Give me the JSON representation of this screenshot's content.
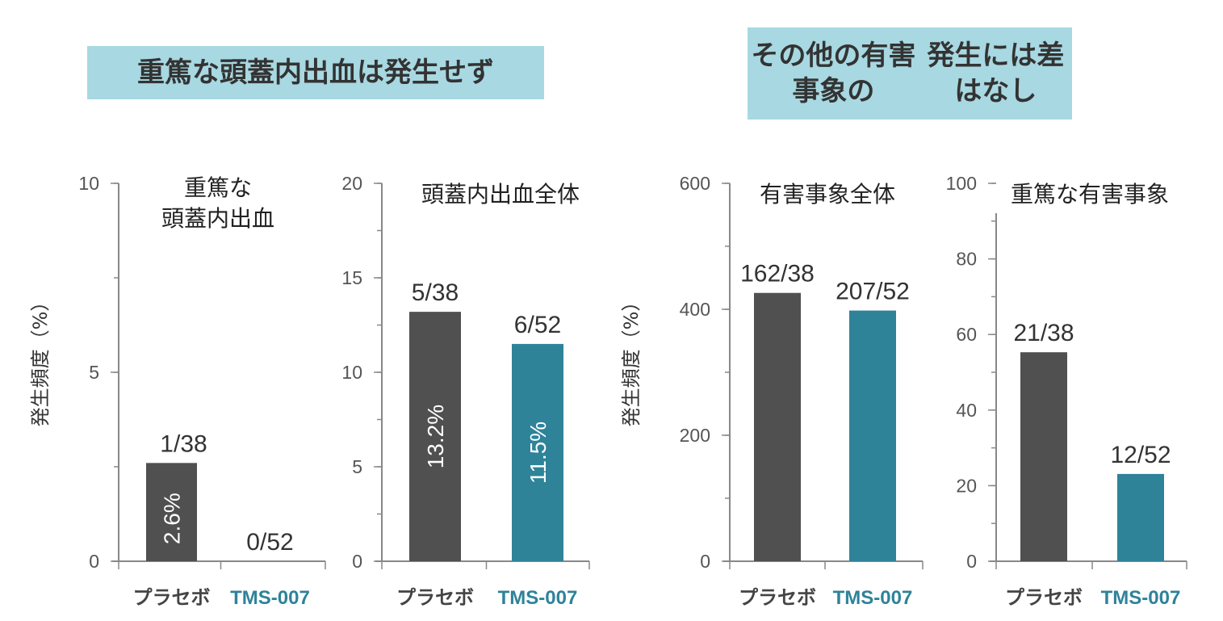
{
  "banners": {
    "left": "重篤な頭蓋内出血は発生せず",
    "right_line1": "その他の有害事象の",
    "right_line2": "発生には差はなし"
  },
  "colors": {
    "placebo": "#505050",
    "tms007": "#2e8399",
    "banner_bg": "#a8d8e2"
  },
  "chart_data": [
    {
      "type": "bar",
      "title": [
        "重篤な",
        "頭蓋内出血"
      ],
      "ylabel": "発生頻度（%）",
      "categories": [
        "プラセボ",
        "TMS-007"
      ],
      "values": [
        2.6,
        0
      ],
      "fractions": [
        "1/38",
        "0/52"
      ],
      "inbar_labels": [
        "2.6%",
        ""
      ],
      "ylim": [
        0,
        10
      ],
      "yticks": [
        0,
        5,
        10
      ],
      "minor_step": 2.5
    },
    {
      "type": "bar",
      "title": [
        "頭蓋内出血全体"
      ],
      "ylabel": "",
      "categories": [
        "プラセボ",
        "TMS-007"
      ],
      "values": [
        13.2,
        11.5
      ],
      "fractions": [
        "5/38",
        "6/52"
      ],
      "inbar_labels": [
        "13.2%",
        "11.5%"
      ],
      "ylim": [
        0,
        20
      ],
      "yticks": [
        0,
        5,
        10,
        15,
        20
      ],
      "minor_step": 2.5
    },
    {
      "type": "bar",
      "title": [
        "有害事象全体"
      ],
      "ylabel": "発生頻度（%）",
      "categories": [
        "プラセボ",
        "TMS-007"
      ],
      "values": [
        426,
        398
      ],
      "fractions": [
        "162/38",
        "207/52"
      ],
      "inbar_labels": [
        "",
        ""
      ],
      "ylim": [
        0,
        600
      ],
      "yticks": [
        0,
        200,
        400,
        600
      ],
      "minor_step": 100
    },
    {
      "type": "bar",
      "title": [
        "重篤な有害事象"
      ],
      "ylabel": "",
      "categories": [
        "プラセボ",
        "TMS-007"
      ],
      "values": [
        55.3,
        23.1
      ],
      "fractions": [
        "21/38",
        "12/52"
      ],
      "inbar_labels": [
        "",
        ""
      ],
      "ylim": [
        0,
        100
      ],
      "yticks": [
        0,
        20,
        40,
        60,
        80,
        100
      ],
      "minor_step": 10
    }
  ]
}
